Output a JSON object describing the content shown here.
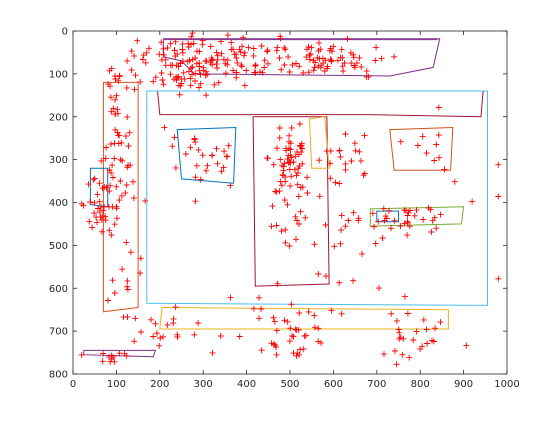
{
  "chart_data": {
    "type": "scatter",
    "title": "",
    "xlabel": "",
    "ylabel": "",
    "xlim": [
      0,
      1000
    ],
    "ylim": [
      0,
      800
    ],
    "y_reversed": true,
    "grid": false,
    "x_ticks": [
      0,
      100,
      200,
      300,
      400,
      500,
      600,
      700,
      800,
      900,
      1000
    ],
    "y_ticks": [
      0,
      100,
      200,
      300,
      400,
      500,
      600,
      700,
      800
    ],
    "marker": "+",
    "marker_color": "#ff0000",
    "clusters": [
      {
        "cx": 300,
        "cy": 60,
        "sx": 80,
        "sy": 25,
        "n": 110
      },
      {
        "cx": 560,
        "cy": 70,
        "sx": 80,
        "sy": 25,
        "n": 80
      },
      {
        "cx": 250,
        "cy": 115,
        "sx": 70,
        "sy": 15,
        "n": 30
      },
      {
        "cx": 100,
        "cy": 150,
        "sx": 15,
        "sy": 50,
        "n": 20
      },
      {
        "cx": 105,
        "cy": 330,
        "sx": 20,
        "sy": 70,
        "n": 40
      },
      {
        "cx": 60,
        "cy": 410,
        "sx": 25,
        "sy": 25,
        "n": 30
      },
      {
        "cx": 110,
        "cy": 550,
        "sx": 25,
        "sy": 60,
        "n": 15
      },
      {
        "cx": 300,
        "cy": 290,
        "sx": 45,
        "sy": 35,
        "n": 25
      },
      {
        "cx": 500,
        "cy": 300,
        "sx": 25,
        "sy": 50,
        "n": 60
      },
      {
        "cx": 620,
        "cy": 290,
        "sx": 35,
        "sy": 30,
        "n": 20
      },
      {
        "cx": 540,
        "cy": 420,
        "sx": 80,
        "sy": 60,
        "n": 25
      },
      {
        "cx": 770,
        "cy": 440,
        "sx": 50,
        "sy": 15,
        "n": 30
      },
      {
        "cx": 850,
        "cy": 280,
        "sx": 50,
        "sy": 30,
        "n": 10
      },
      {
        "cx": 500,
        "cy": 710,
        "sx": 50,
        "sy": 30,
        "n": 40
      },
      {
        "cx": 780,
        "cy": 710,
        "sx": 40,
        "sy": 30,
        "n": 25
      },
      {
        "cx": 200,
        "cy": 700,
        "sx": 60,
        "sy": 25,
        "n": 20
      },
      {
        "cx": 80,
        "cy": 755,
        "sx": 30,
        "sy": 10,
        "n": 12
      },
      {
        "cx": 700,
        "cy": 450,
        "sx": 200,
        "sy": 150,
        "n": 25
      }
    ],
    "polygons": [
      {
        "color": "#7e2f8e",
        "points": [
          [
            210,
            20
          ],
          [
            210,
            20
          ],
          [
            840,
            20
          ],
          [
            840,
            20
          ]
        ]
      },
      {
        "color": "#7e2f8e",
        "points": [
          [
            208,
            18
          ],
          [
            845,
            18
          ],
          [
            830,
            85
          ],
          [
            730,
            105
          ],
          [
            280,
            100
          ],
          [
            250,
            70
          ],
          [
            208,
            60
          ]
        ]
      },
      {
        "color": "#a2142f",
        "points": [
          [
            195,
            140
          ],
          [
            945,
            140
          ],
          [
            940,
            200
          ],
          [
            680,
            195
          ],
          [
            200,
            195
          ]
        ]
      },
      {
        "color": "#4dbeee",
        "points": [
          [
            170,
            140
          ],
          [
            955,
            140
          ],
          [
            955,
            640
          ],
          [
            170,
            635
          ]
        ]
      },
      {
        "color": "#d95319",
        "points": [
          [
            70,
            120
          ],
          [
            150,
            120
          ],
          [
            150,
            645
          ],
          [
            70,
            655
          ]
        ]
      },
      {
        "color": "#0072bd",
        "points": [
          [
            240,
            230
          ],
          [
            375,
            225
          ],
          [
            370,
            355
          ],
          [
            250,
            345
          ]
        ]
      },
      {
        "color": "#a2142f",
        "points": [
          [
            415,
            200
          ],
          [
            585,
            200
          ],
          [
            590,
            590
          ],
          [
            420,
            595
          ]
        ]
      },
      {
        "color": "#edb120",
        "points": [
          [
            545,
            205
          ],
          [
            580,
            200
          ],
          [
            590,
            320
          ],
          [
            550,
            320
          ]
        ]
      },
      {
        "color": "#d95319",
        "points": [
          [
            730,
            230
          ],
          [
            875,
            225
          ],
          [
            870,
            325
          ],
          [
            740,
            325
          ]
        ]
      },
      {
        "color": "#0072bd",
        "points": [
          [
            40,
            320
          ],
          [
            80,
            320
          ],
          [
            80,
            410
          ],
          [
            40,
            405
          ]
        ]
      },
      {
        "color": "#77ac30",
        "points": [
          [
            685,
            415
          ],
          [
            900,
            410
          ],
          [
            895,
            450
          ],
          [
            685,
            455
          ]
        ]
      },
      {
        "color": "#0072bd",
        "points": [
          [
            700,
            420
          ],
          [
            750,
            420
          ],
          [
            750,
            445
          ],
          [
            700,
            445
          ]
        ]
      },
      {
        "color": "#edb120",
        "points": [
          [
            205,
            645
          ],
          [
            865,
            650
          ],
          [
            865,
            695
          ],
          [
            200,
            695
          ]
        ]
      },
      {
        "color": "#7e2f8e",
        "points": [
          [
            25,
            745
          ],
          [
            190,
            745
          ],
          [
            185,
            760
          ],
          [
            25,
            755
          ]
        ]
      }
    ]
  }
}
